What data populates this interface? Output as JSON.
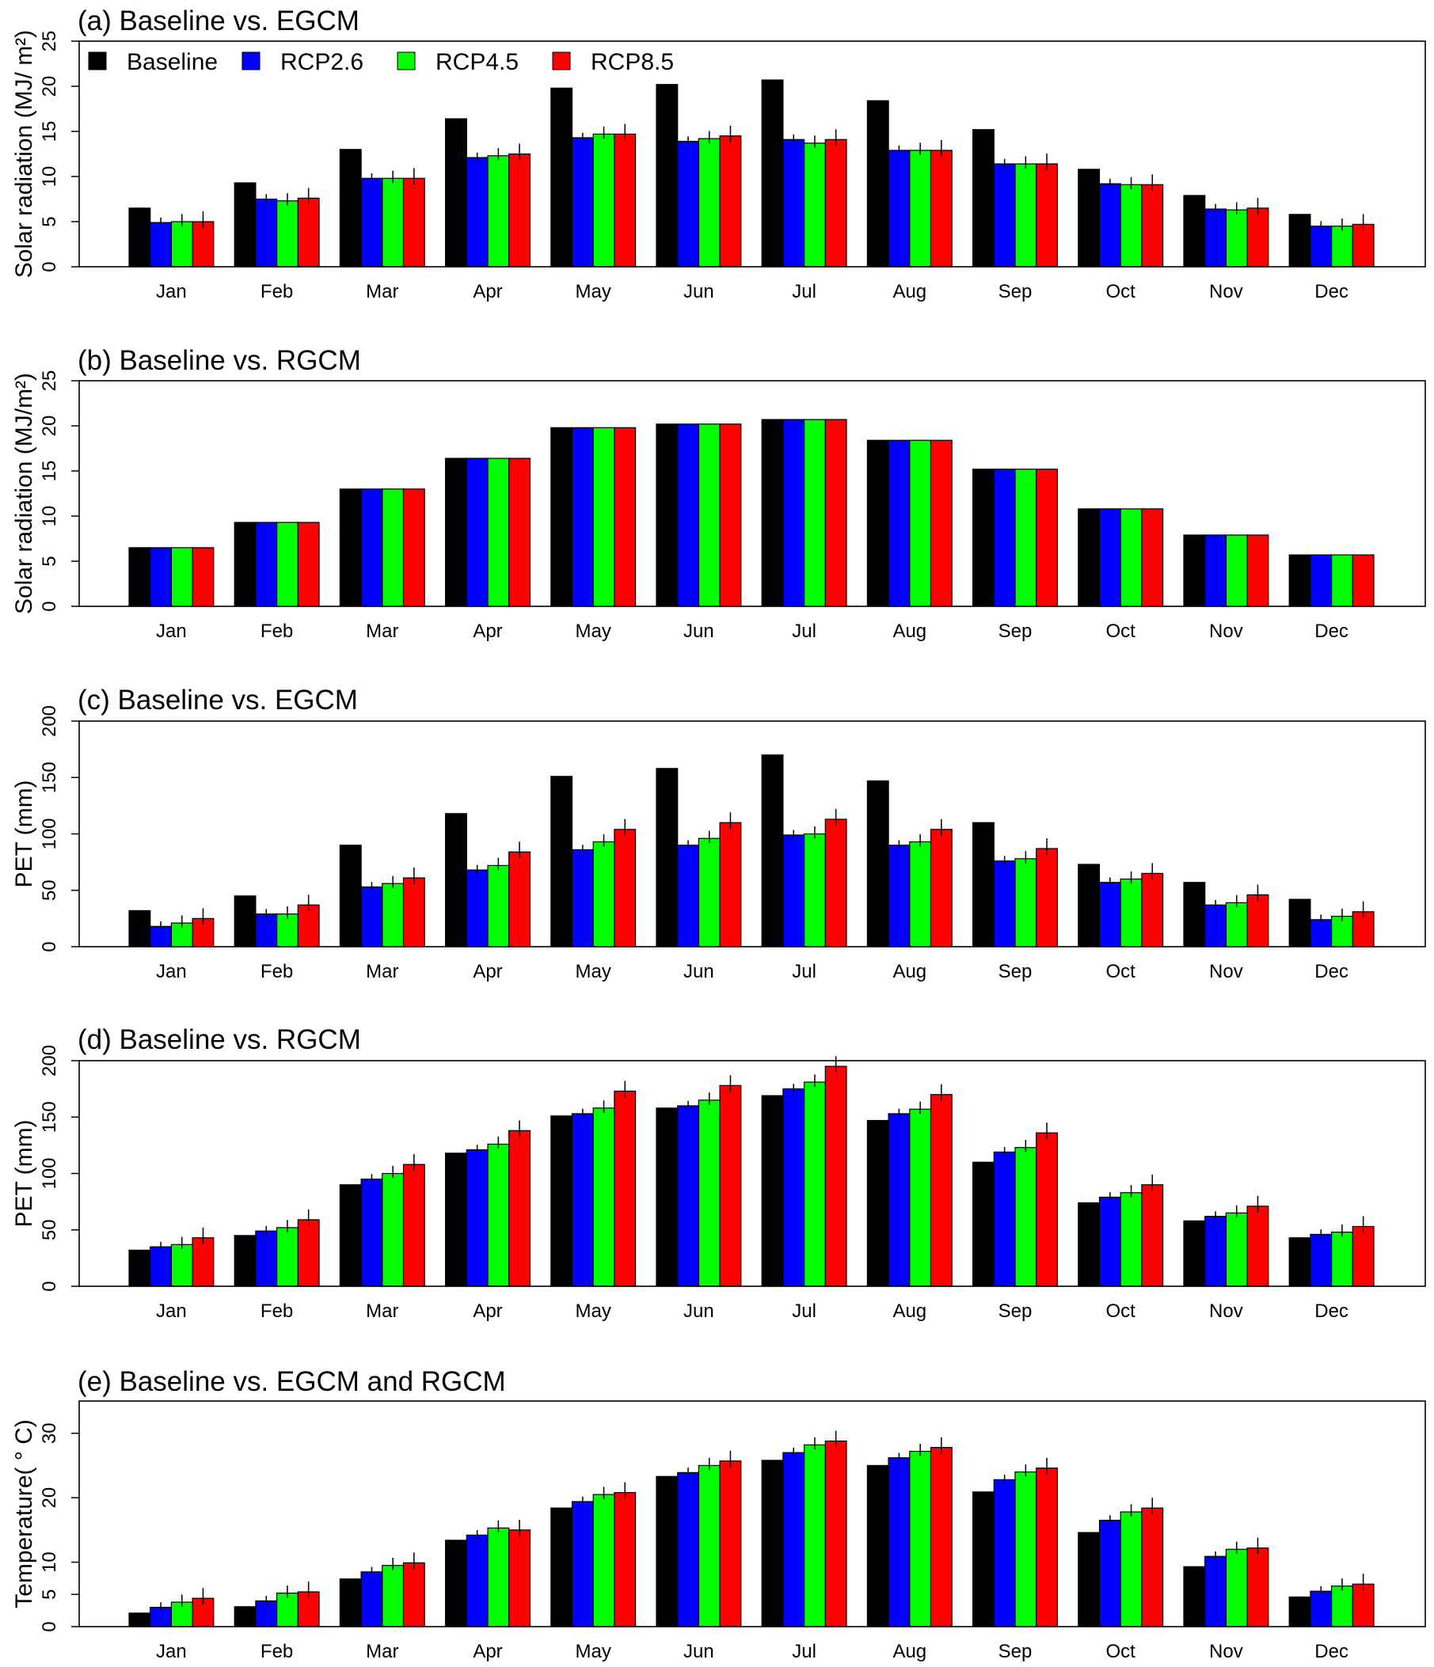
{
  "legend": [
    {
      "name": "Baseline",
      "color": "#000000"
    },
    {
      "name": "RCP2.6",
      "color": "#0000ff"
    },
    {
      "name": "RCP4.5",
      "color": "#00ff00"
    },
    {
      "name": "RCP8.5",
      "color": "#ff0000"
    }
  ],
  "chart_data": [
    {
      "type": "bar",
      "title": "(a) Baseline vs. EGCM",
      "ylabel": "Solar radiation (MJ/ m²)",
      "ylim": [
        0,
        25
      ],
      "yticks": [
        0,
        5,
        10,
        15,
        20,
        25
      ],
      "categories": [
        "Jan",
        "Feb",
        "Mar",
        "Apr",
        "May",
        "Jun",
        "Jul",
        "Aug",
        "Sep",
        "Oct",
        "Nov",
        "Dec"
      ],
      "series": [
        {
          "name": "Baseline",
          "values": [
            6.5,
            9.3,
            13.0,
            16.4,
            19.8,
            20.2,
            20.7,
            18.4,
            15.2,
            10.8,
            7.9,
            5.8
          ]
        },
        {
          "name": "RCP2.6",
          "values": [
            4.9,
            7.5,
            9.8,
            12.1,
            14.3,
            13.9,
            14.1,
            12.9,
            11.4,
            9.2,
            6.4,
            4.5
          ]
        },
        {
          "name": "RCP4.5",
          "values": [
            5.0,
            7.3,
            9.8,
            12.3,
            14.7,
            14.2,
            13.7,
            12.9,
            11.4,
            9.1,
            6.3,
            4.5
          ]
        },
        {
          "name": "RCP8.5",
          "values": [
            5.0,
            7.6,
            9.8,
            12.5,
            14.7,
            14.5,
            14.1,
            12.9,
            11.4,
            9.1,
            6.5,
            4.7
          ]
        }
      ]
    },
    {
      "type": "bar",
      "title": "(b) Baseline vs. RGCM",
      "ylabel": "Solar radiation (MJ/m²)",
      "ylim": [
        0,
        25
      ],
      "yticks": [
        0,
        5,
        10,
        15,
        20,
        25
      ],
      "categories": [
        "Jan",
        "Feb",
        "Mar",
        "Apr",
        "May",
        "Jun",
        "Jul",
        "Aug",
        "Sep",
        "Oct",
        "Nov",
        "Dec"
      ],
      "series": [
        {
          "name": "Baseline",
          "values": [
            6.5,
            9.3,
            13.0,
            16.4,
            19.8,
            20.2,
            20.7,
            18.4,
            15.2,
            10.8,
            7.9,
            5.7
          ]
        },
        {
          "name": "RCP2.6",
          "values": [
            6.5,
            9.3,
            13.0,
            16.4,
            19.8,
            20.2,
            20.7,
            18.4,
            15.2,
            10.8,
            7.9,
            5.7
          ]
        },
        {
          "name": "RCP4.5",
          "values": [
            6.5,
            9.3,
            13.0,
            16.4,
            19.8,
            20.2,
            20.7,
            18.4,
            15.2,
            10.8,
            7.9,
            5.7
          ]
        },
        {
          "name": "RCP8.5",
          "values": [
            6.5,
            9.3,
            13.0,
            16.4,
            19.8,
            20.2,
            20.7,
            18.4,
            15.2,
            10.8,
            7.9,
            5.7
          ]
        }
      ]
    },
    {
      "type": "bar",
      "title": "(c) Baseline vs. EGCM",
      "ylabel": "PET (mm)",
      "ylim": [
        0,
        200
      ],
      "yticks": [
        0,
        50,
        100,
        150,
        200
      ],
      "categories": [
        "Jan",
        "Feb",
        "Mar",
        "Apr",
        "May",
        "Jun",
        "Jul",
        "Aug",
        "Sep",
        "Oct",
        "Nov",
        "Dec"
      ],
      "series": [
        {
          "name": "Baseline",
          "values": [
            32,
            45,
            90,
            118,
            151,
            158,
            170,
            147,
            110,
            73,
            57,
            42
          ]
        },
        {
          "name": "RCP2.6",
          "values": [
            18,
            29,
            53,
            68,
            86,
            90,
            99,
            90,
            76,
            57,
            37,
            24
          ]
        },
        {
          "name": "RCP4.5",
          "values": [
            21,
            29,
            56,
            72,
            93,
            96,
            100,
            93,
            78,
            60,
            39,
            27
          ]
        },
        {
          "name": "RCP8.5",
          "values": [
            25,
            37,
            61,
            84,
            104,
            110,
            113,
            104,
            87,
            65,
            46,
            31
          ]
        }
      ]
    },
    {
      "type": "bar",
      "title": "(d) Baseline vs. RGCM",
      "ylabel": "PET (mm)",
      "ylim": [
        0,
        200
      ],
      "yticks": [
        0,
        50,
        100,
        150,
        200
      ],
      "categories": [
        "Jan",
        "Feb",
        "Mar",
        "Apr",
        "May",
        "Jun",
        "Jul",
        "Aug",
        "Sep",
        "Oct",
        "Nov",
        "Dec"
      ],
      "series": [
        {
          "name": "Baseline",
          "values": [
            32,
            45,
            90,
            118,
            151,
            158,
            169,
            147,
            110,
            74,
            58,
            43
          ]
        },
        {
          "name": "RCP2.6",
          "values": [
            35,
            49,
            95,
            121,
            153,
            160,
            175,
            153,
            119,
            79,
            62,
            46
          ]
        },
        {
          "name": "RCP4.5",
          "values": [
            37,
            52,
            100,
            126,
            158,
            165,
            181,
            157,
            123,
            83,
            65,
            48
          ]
        },
        {
          "name": "RCP8.5",
          "values": [
            43,
            59,
            108,
            138,
            173,
            178,
            195,
            170,
            136,
            90,
            71,
            53
          ]
        }
      ]
    },
    {
      "type": "bar",
      "title": "(e) Baseline vs. EGCM and RGCM",
      "ylabel": "Temperature( ° C)",
      "ylim": [
        0,
        35
      ],
      "yticks": [
        0,
        5,
        10,
        20,
        30
      ],
      "categories": [
        "Jan",
        "Feb",
        "Mar",
        "Apr",
        "May",
        "Jun",
        "Jul",
        "Aug",
        "Sep",
        "Oct",
        "Nov",
        "Dec"
      ],
      "series": [
        {
          "name": "Baseline",
          "values": [
            2.1,
            3.1,
            7.4,
            13.4,
            18.4,
            23.3,
            25.8,
            25.0,
            20.9,
            14.6,
            9.3,
            4.6
          ]
        },
        {
          "name": "RCP2.6",
          "values": [
            3.0,
            4.0,
            8.5,
            14.2,
            19.4,
            23.9,
            27.0,
            26.2,
            22.8,
            16.5,
            10.9,
            5.5
          ]
        },
        {
          "name": "RCP4.5",
          "values": [
            3.8,
            5.2,
            9.5,
            15.3,
            20.5,
            25.0,
            28.2,
            27.2,
            24.0,
            17.8,
            12.0,
            6.3
          ]
        },
        {
          "name": "RCP8.5",
          "values": [
            4.4,
            5.4,
            9.9,
            15.0,
            20.8,
            25.7,
            28.8,
            27.8,
            24.6,
            18.4,
            12.2,
            6.6
          ]
        }
      ]
    }
  ]
}
